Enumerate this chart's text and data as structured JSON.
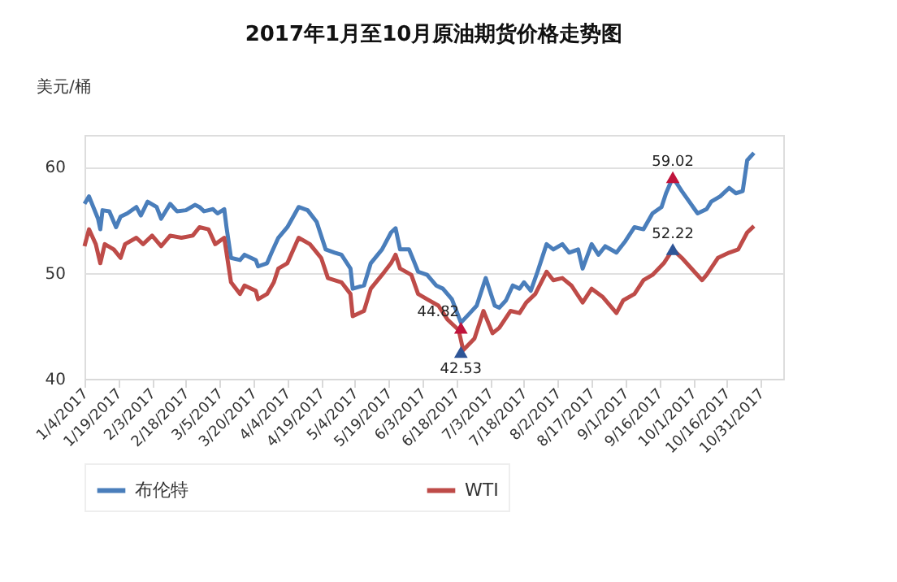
{
  "chart_data": {
    "type": "line",
    "title": "2017年1月至10月原油期货价格走势图",
    "ylabel": "美元/桶",
    "xlim": [
      "2017-01-04",
      "2017-11-10"
    ],
    "ylim": [
      40,
      63
    ],
    "yticks": [
      40,
      50,
      60
    ],
    "xticks": [
      {
        "value": "2017-01-04",
        "label": "1/4/2017"
      },
      {
        "value": "2017-01-19",
        "label": "1/19/2017"
      },
      {
        "value": "2017-02-03",
        "label": "2/3/2017"
      },
      {
        "value": "2017-02-18",
        "label": "2/18/2017"
      },
      {
        "value": "2017-03-05",
        "label": "3/5/2017"
      },
      {
        "value": "2017-03-20",
        "label": "3/20/2017"
      },
      {
        "value": "2017-04-04",
        "label": "4/4/2017"
      },
      {
        "value": "2017-04-19",
        "label": "4/19/2017"
      },
      {
        "value": "2017-05-04",
        "label": "5/4/2017"
      },
      {
        "value": "2017-05-19",
        "label": "5/19/2017"
      },
      {
        "value": "2017-06-03",
        "label": "6/3/2017"
      },
      {
        "value": "2017-06-18",
        "label": "6/18/2017"
      },
      {
        "value": "2017-07-03",
        "label": "7/3/2017"
      },
      {
        "value": "2017-07-18",
        "label": "7/18/2017"
      },
      {
        "value": "2017-08-02",
        "label": "8/2/2017"
      },
      {
        "value": "2017-08-17",
        "label": "8/17/2017"
      },
      {
        "value": "2017-09-01",
        "label": "9/1/2017"
      },
      {
        "value": "2017-09-16",
        "label": "9/16/2017"
      },
      {
        "value": "2017-10-01",
        "label": "10/1/2017"
      },
      {
        "value": "2017-10-16",
        "label": "10/16/2017"
      },
      {
        "value": "2017-10-31",
        "label": "10/31/2017"
      }
    ],
    "grid": "y",
    "legend": "bottom",
    "line_style": "solid",
    "series": [
      {
        "name": "布伦特",
        "color": "#4a7ebb",
        "x": [
          "2017-01-04",
          "2017-01-06",
          "2017-01-10",
          "2017-01-11",
          "2017-01-12",
          "2017-01-15",
          "2017-01-18",
          "2017-01-20",
          "2017-01-23",
          "2017-01-27",
          "2017-01-29",
          "2017-02-01",
          "2017-02-05",
          "2017-02-07",
          "2017-02-11",
          "2017-02-14",
          "2017-02-18",
          "2017-02-22",
          "2017-02-24",
          "2017-02-26",
          "2017-03-02",
          "2017-03-04",
          "2017-03-07",
          "2017-03-08",
          "2017-03-10",
          "2017-03-14",
          "2017-03-16",
          "2017-03-21",
          "2017-03-22",
          "2017-03-26",
          "2017-03-28",
          "2017-03-31",
          "2017-04-04",
          "2017-04-09",
          "2017-04-13",
          "2017-04-17",
          "2017-04-21",
          "2017-04-25",
          "2017-04-28",
          "2017-05-02",
          "2017-05-03",
          "2017-05-08",
          "2017-05-11",
          "2017-05-16",
          "2017-05-20",
          "2017-05-22",
          "2017-05-24",
          "2017-05-28",
          "2017-06-01",
          "2017-06-05",
          "2017-06-09",
          "2017-06-12",
          "2017-06-16",
          "2017-06-20",
          "2017-06-24",
          "2017-06-27",
          "2017-07-01",
          "2017-07-05",
          "2017-07-07",
          "2017-07-10",
          "2017-07-13",
          "2017-07-16",
          "2017-07-18",
          "2017-07-21",
          "2017-07-24",
          "2017-07-28",
          "2017-07-31",
          "2017-08-04",
          "2017-08-07",
          "2017-08-11",
          "2017-08-13",
          "2017-08-17",
          "2017-08-20",
          "2017-08-23",
          "2017-08-28",
          "2017-09-01",
          "2017-09-05",
          "2017-09-09",
          "2017-09-13",
          "2017-09-17",
          "2017-09-19",
          "2017-09-22",
          "2017-09-26",
          "2017-10-01",
          "2017-10-03",
          "2017-10-07",
          "2017-10-09",
          "2017-10-13",
          "2017-10-17",
          "2017-10-20",
          "2017-10-23",
          "2017-10-25",
          "2017-10-28"
        ],
        "values": [
          56.5,
          57.2,
          55.1,
          54.1,
          55.9,
          55.8,
          54.3,
          55.3,
          55.6,
          56.2,
          55.4,
          56.7,
          56.2,
          55.1,
          56.5,
          55.8,
          55.9,
          56.4,
          56.2,
          55.8,
          56.0,
          55.6,
          56.0,
          54.3,
          51.4,
          51.2,
          51.7,
          51.2,
          50.6,
          50.9,
          51.9,
          53.3,
          54.3,
          56.2,
          55.9,
          54.8,
          52.2,
          51.9,
          51.7,
          50.4,
          48.5,
          48.8,
          50.9,
          52.2,
          53.8,
          54.2,
          52.2,
          52.2,
          50.1,
          49.8,
          48.8,
          48.5,
          47.5,
          45.3,
          46.2,
          46.9,
          49.5,
          46.9,
          46.7,
          47.4,
          48.8,
          48.5,
          49.1,
          48.3,
          50.1,
          52.7,
          52.2,
          52.7,
          51.9,
          52.2,
          50.4,
          52.7,
          51.7,
          52.5,
          51.9,
          53.0,
          54.3,
          54.1,
          55.6,
          56.2,
          57.5,
          59.0,
          57.7,
          56.2,
          55.6,
          56.0,
          56.7,
          57.2,
          58.0,
          57.5,
          57.7,
          60.6,
          61.3
        ]
      },
      {
        "name": "WTI",
        "color": "#be4b48",
        "x": [
          "2017-01-04",
          "2017-01-06",
          "2017-01-09",
          "2017-01-11",
          "2017-01-13",
          "2017-01-17",
          "2017-01-20",
          "2017-01-22",
          "2017-01-27",
          "2017-01-30",
          "2017-02-03",
          "2017-02-07",
          "2017-02-11",
          "2017-02-16",
          "2017-02-21",
          "2017-02-24",
          "2017-02-28",
          "2017-03-03",
          "2017-03-07",
          "2017-03-08",
          "2017-03-10",
          "2017-03-14",
          "2017-03-16",
          "2017-03-21",
          "2017-03-22",
          "2017-03-26",
          "2017-03-29",
          "2017-03-31",
          "2017-04-04",
          "2017-04-09",
          "2017-04-14",
          "2017-04-19",
          "2017-04-22",
          "2017-04-28",
          "2017-05-02",
          "2017-05-03",
          "2017-05-08",
          "2017-05-11",
          "2017-05-16",
          "2017-05-20",
          "2017-05-22",
          "2017-05-24",
          "2017-05-29",
          "2017-06-01",
          "2017-06-05",
          "2017-06-10",
          "2017-06-14",
          "2017-06-19",
          "2017-06-21",
          "2017-06-26",
          "2017-06-30",
          "2017-07-04",
          "2017-07-07",
          "2017-07-12",
          "2017-07-16",
          "2017-07-19",
          "2017-07-23",
          "2017-07-28",
          "2017-07-31",
          "2017-08-04",
          "2017-08-08",
          "2017-08-13",
          "2017-08-17",
          "2017-08-22",
          "2017-08-28",
          "2017-08-31",
          "2017-09-05",
          "2017-09-09",
          "2017-09-13",
          "2017-09-18",
          "2017-09-22",
          "2017-09-26",
          "2017-10-05",
          "2017-10-07",
          "2017-10-12",
          "2017-10-17",
          "2017-10-21",
          "2017-10-25",
          "2017-10-28"
        ],
        "values": [
          52.5,
          54.1,
          52.7,
          50.9,
          52.7,
          52.2,
          51.4,
          52.7,
          53.3,
          52.7,
          53.5,
          52.5,
          53.5,
          53.3,
          53.5,
          54.3,
          54.1,
          52.7,
          53.3,
          51.9,
          49.1,
          48.0,
          48.8,
          48.3,
          47.5,
          48.0,
          49.1,
          50.4,
          50.9,
          53.3,
          52.7,
          51.4,
          49.5,
          49.1,
          48.0,
          45.9,
          46.4,
          48.5,
          49.8,
          50.9,
          51.7,
          50.4,
          49.8,
          48.0,
          47.5,
          46.9,
          45.6,
          44.6,
          42.7,
          43.8,
          46.4,
          44.3,
          44.8,
          46.4,
          46.2,
          47.2,
          48.0,
          50.1,
          49.3,
          49.5,
          48.8,
          47.2,
          48.5,
          47.7,
          46.2,
          47.4,
          48.0,
          49.3,
          49.8,
          50.9,
          52.2,
          51.4,
          49.3,
          49.8,
          51.4,
          51.9,
          52.2,
          53.8,
          54.4
        ]
      },
      {
        "type": "scatter",
        "marker": "triangle",
        "color": "#c0143c",
        "x": [
          "2017-06-20",
          "2017-09-22"
        ],
        "values": [
          44.82,
          59.02
        ],
        "value_labels": [
          "44.82",
          "59.02"
        ]
      },
      {
        "type": "scatter",
        "marker": "triangle",
        "color": "#2e5597",
        "x": [
          "2017-06-20",
          "2017-09-22"
        ],
        "values": [
          42.53,
          52.22
        ],
        "value_labels": [
          "42.53",
          "52.22"
        ]
      }
    ]
  }
}
